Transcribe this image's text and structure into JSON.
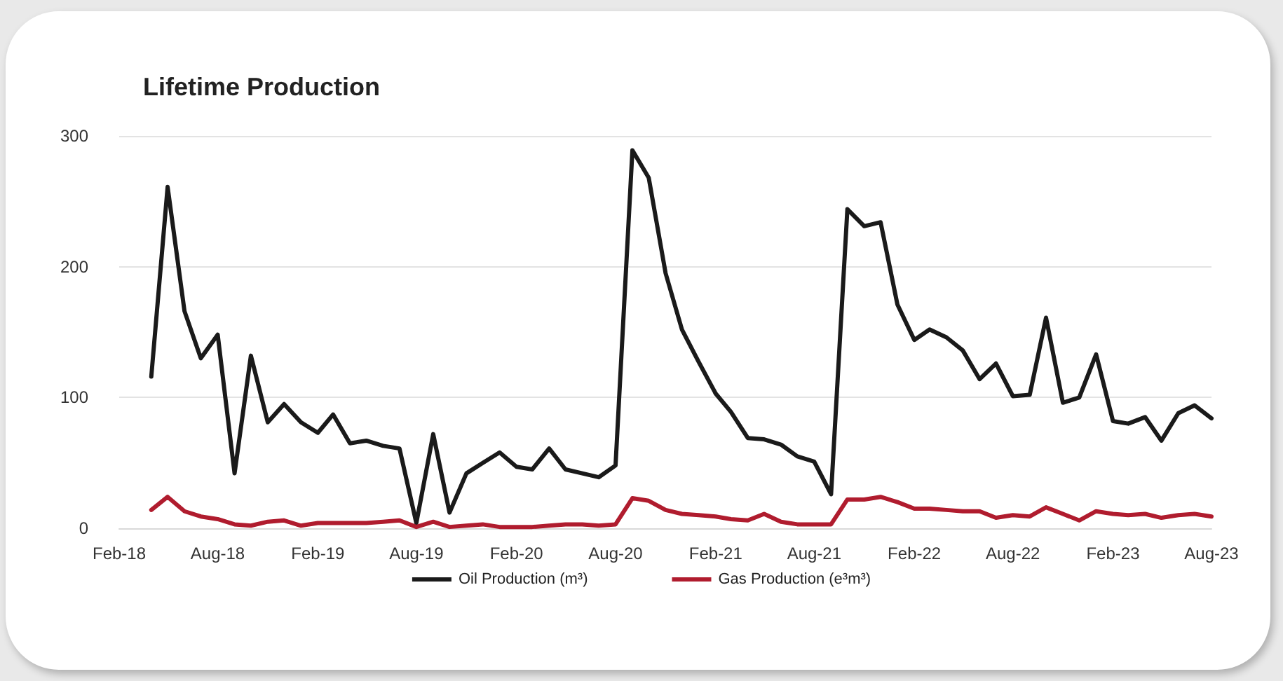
{
  "chart_data": {
    "type": "line",
    "title": "Lifetime Production",
    "x": [
      "2018-04",
      "2018-05",
      "2018-06",
      "2018-07",
      "2018-08",
      "2018-09",
      "2018-10",
      "2018-11",
      "2018-12",
      "2019-01",
      "2019-02",
      "2019-03",
      "2019-04",
      "2019-05",
      "2019-06",
      "2019-07",
      "2019-08",
      "2019-09",
      "2019-10",
      "2019-11",
      "2019-12",
      "2020-01",
      "2020-02",
      "2020-03",
      "2020-04",
      "2020-05",
      "2020-06",
      "2020-07",
      "2020-08",
      "2020-09",
      "2020-10",
      "2020-11",
      "2020-12",
      "2021-01",
      "2021-02",
      "2021-03",
      "2021-04",
      "2021-05",
      "2021-06",
      "2021-07",
      "2021-08",
      "2021-09",
      "2021-10",
      "2021-11",
      "2021-12",
      "2022-01",
      "2022-02",
      "2022-03",
      "2022-04",
      "2022-05",
      "2022-06",
      "2022-07",
      "2022-08",
      "2022-09",
      "2022-10",
      "2022-11",
      "2022-12",
      "2023-01",
      "2023-02",
      "2023-03",
      "2023-04",
      "2023-05",
      "2023-06",
      "2023-07",
      "2023-08"
    ],
    "series": [
      {
        "name": "Oil Production (m³)",
        "color": "#1a1a1a",
        "values": [
          116,
          261,
          166,
          130,
          148,
          42,
          132,
          81,
          95,
          81,
          73,
          87,
          65,
          67,
          63,
          61,
          4,
          72,
          12,
          42,
          50,
          58,
          47,
          45,
          61,
          45,
          42,
          39,
          48,
          289,
          268,
          195,
          152,
          127,
          103,
          89,
          69,
          68,
          64,
          55,
          51,
          26,
          244,
          231,
          234,
          171,
          144,
          152,
          146,
          136,
          114,
          126,
          101,
          102,
          161,
          96,
          100,
          133,
          82,
          80,
          85,
          67,
          88,
          94,
          84
        ]
      },
      {
        "name": "Gas Production (e³m³)",
        "color": "#b01c2e",
        "values": [
          14,
          24,
          13,
          9,
          7,
          3,
          2,
          5,
          6,
          2,
          4,
          4,
          4,
          4,
          5,
          6,
          1,
          5,
          1,
          2,
          3,
          1,
          1,
          1,
          2,
          3,
          3,
          2,
          3,
          23,
          21,
          14,
          11,
          10,
          9,
          7,
          6,
          11,
          5,
          3,
          3,
          3,
          22,
          22,
          24,
          20,
          15,
          15,
          14,
          13,
          13,
          8,
          10,
          9,
          16,
          11,
          6,
          13,
          11,
          10,
          11,
          8,
          10,
          11,
          9
        ]
      }
    ],
    "xlim": [
      "2018-02",
      "2023-08"
    ],
    "xticks": [
      {
        "value": "2018-02",
        "label": "Feb-18"
      },
      {
        "value": "2018-08",
        "label": "Aug-18"
      },
      {
        "value": "2019-02",
        "label": "Feb-19"
      },
      {
        "value": "2019-08",
        "label": "Aug-19"
      },
      {
        "value": "2020-02",
        "label": "Feb-20"
      },
      {
        "value": "2020-08",
        "label": "Aug-20"
      },
      {
        "value": "2021-02",
        "label": "Feb-21"
      },
      {
        "value": "2021-08",
        "label": "Aug-21"
      },
      {
        "value": "2022-02",
        "label": "Feb-22"
      },
      {
        "value": "2022-08",
        "label": "Aug-22"
      },
      {
        "value": "2023-02",
        "label": "Feb-23"
      },
      {
        "value": "2023-08",
        "label": "Aug-23"
      }
    ],
    "ylim": [
      0,
      300
    ],
    "yticks": [
      0,
      100,
      200,
      300
    ],
    "grid": "y",
    "legend": "bottom",
    "marker": "none",
    "line_style": "solid"
  }
}
